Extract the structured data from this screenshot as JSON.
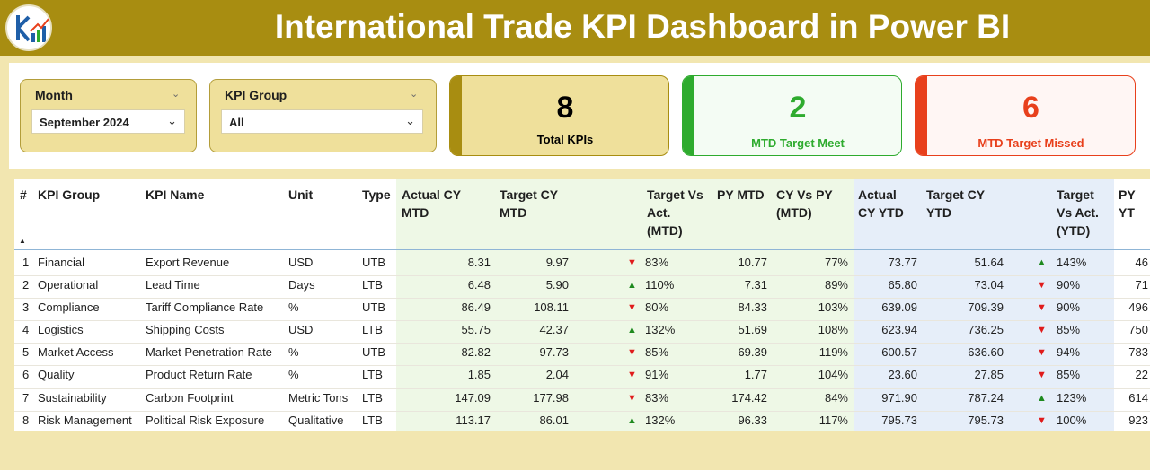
{
  "header": {
    "title": "International Trade KPI Dashboard in Power BI",
    "logo_icon": "chart-logo-icon"
  },
  "filters": {
    "month": {
      "label": "Month",
      "value": "September 2024"
    },
    "kpi_group": {
      "label": "KPI Group",
      "value": "All"
    }
  },
  "cards": {
    "total": {
      "value": "8",
      "label": "Total KPIs",
      "color": "#a88d11"
    },
    "meet": {
      "value": "2",
      "label": "MTD Target Meet",
      "color": "#2eab2e"
    },
    "missed": {
      "value": "6",
      "label": "MTD Target Missed",
      "color": "#e8401c"
    }
  },
  "table": {
    "headers": {
      "num": "#",
      "group": "KPI Group",
      "name": "KPI Name",
      "unit": "Unit",
      "type": "Type",
      "actual_mtd": [
        "Actual CY",
        "MTD"
      ],
      "target_mtd": [
        "Target CY",
        "MTD"
      ],
      "tva_mtd": [
        "Target Vs",
        "Act.",
        "(MTD)"
      ],
      "py_mtd": [
        "PY MTD"
      ],
      "cyvspy_mtd": [
        "CY Vs PY",
        "(MTD)"
      ],
      "actual_ytd": [
        "Actual",
        "CY YTD"
      ],
      "target_ytd": [
        "Target CY",
        "YTD"
      ],
      "tva_ytd": [
        "Target",
        "Vs Act.",
        "(YTD)"
      ],
      "py_ytd": [
        "PY YT"
      ]
    },
    "status_colors": {
      "up": "#1e8a1e",
      "down": "#e01b1b"
    },
    "rows": [
      {
        "num": "1",
        "group": "Financial",
        "name": "Export Revenue",
        "unit": "USD",
        "type": "UTB",
        "actual_mtd": "8.31",
        "target_mtd": "9.97",
        "mtd_icon": "down",
        "tva_mtd": "83%",
        "py_mtd": "10.77",
        "cyvspy_mtd": "77%",
        "actual_ytd": "73.77",
        "target_ytd": "51.64",
        "ytd_icon": "up",
        "tva_ytd": "143%",
        "py_ytd": "46"
      },
      {
        "num": "2",
        "group": "Operational",
        "name": "Lead Time",
        "unit": "Days",
        "type": "LTB",
        "actual_mtd": "6.48",
        "target_mtd": "5.90",
        "mtd_icon": "up",
        "tva_mtd": "110%",
        "py_mtd": "7.31",
        "cyvspy_mtd": "89%",
        "actual_ytd": "65.80",
        "target_ytd": "73.04",
        "ytd_icon": "down",
        "tva_ytd": "90%",
        "py_ytd": "71"
      },
      {
        "num": "3",
        "group": "Compliance",
        "name": "Tariff Compliance Rate",
        "unit": "%",
        "type": "UTB",
        "actual_mtd": "86.49",
        "target_mtd": "108.11",
        "mtd_icon": "down",
        "tva_mtd": "80%",
        "py_mtd": "84.33",
        "cyvspy_mtd": "103%",
        "actual_ytd": "639.09",
        "target_ytd": "709.39",
        "ytd_icon": "down",
        "tva_ytd": "90%",
        "py_ytd": "496"
      },
      {
        "num": "4",
        "group": "Logistics",
        "name": "Shipping Costs",
        "unit": "USD",
        "type": "LTB",
        "actual_mtd": "55.75",
        "target_mtd": "42.37",
        "mtd_icon": "up",
        "tva_mtd": "132%",
        "py_mtd": "51.69",
        "cyvspy_mtd": "108%",
        "actual_ytd": "623.94",
        "target_ytd": "736.25",
        "ytd_icon": "down",
        "tva_ytd": "85%",
        "py_ytd": "750"
      },
      {
        "num": "5",
        "group": "Market Access",
        "name": "Market Penetration Rate",
        "unit": "%",
        "type": "UTB",
        "actual_mtd": "82.82",
        "target_mtd": "97.73",
        "mtd_icon": "down",
        "tva_mtd": "85%",
        "py_mtd": "69.39",
        "cyvspy_mtd": "119%",
        "actual_ytd": "600.57",
        "target_ytd": "636.60",
        "ytd_icon": "down",
        "tva_ytd": "94%",
        "py_ytd": "783"
      },
      {
        "num": "6",
        "group": "Quality",
        "name": "Product Return Rate",
        "unit": "%",
        "type": "LTB",
        "actual_mtd": "1.85",
        "target_mtd": "2.04",
        "mtd_icon": "down",
        "tva_mtd": "91%",
        "py_mtd": "1.77",
        "cyvspy_mtd": "104%",
        "actual_ytd": "23.60",
        "target_ytd": "27.85",
        "ytd_icon": "down",
        "tva_ytd": "85%",
        "py_ytd": "22"
      },
      {
        "num": "7",
        "group": "Sustainability",
        "name": "Carbon Footprint",
        "unit": "Metric Tons",
        "type": "LTB",
        "actual_mtd": "147.09",
        "target_mtd": "177.98",
        "mtd_icon": "down",
        "tva_mtd": "83%",
        "py_mtd": "174.42",
        "cyvspy_mtd": "84%",
        "actual_ytd": "971.90",
        "target_ytd": "787.24",
        "ytd_icon": "up",
        "tva_ytd": "123%",
        "py_ytd": "614"
      },
      {
        "num": "8",
        "group": "Risk Management",
        "name": "Political Risk Exposure",
        "unit": "Qualitative",
        "type": "LTB",
        "actual_mtd": "113.17",
        "target_mtd": "86.01",
        "mtd_icon": "up",
        "tva_mtd": "132%",
        "py_mtd": "96.33",
        "cyvspy_mtd": "117%",
        "actual_ytd": "795.73",
        "target_ytd": "795.73",
        "ytd_icon": "down",
        "tva_ytd": "100%",
        "py_ytd": "923"
      }
    ]
  }
}
